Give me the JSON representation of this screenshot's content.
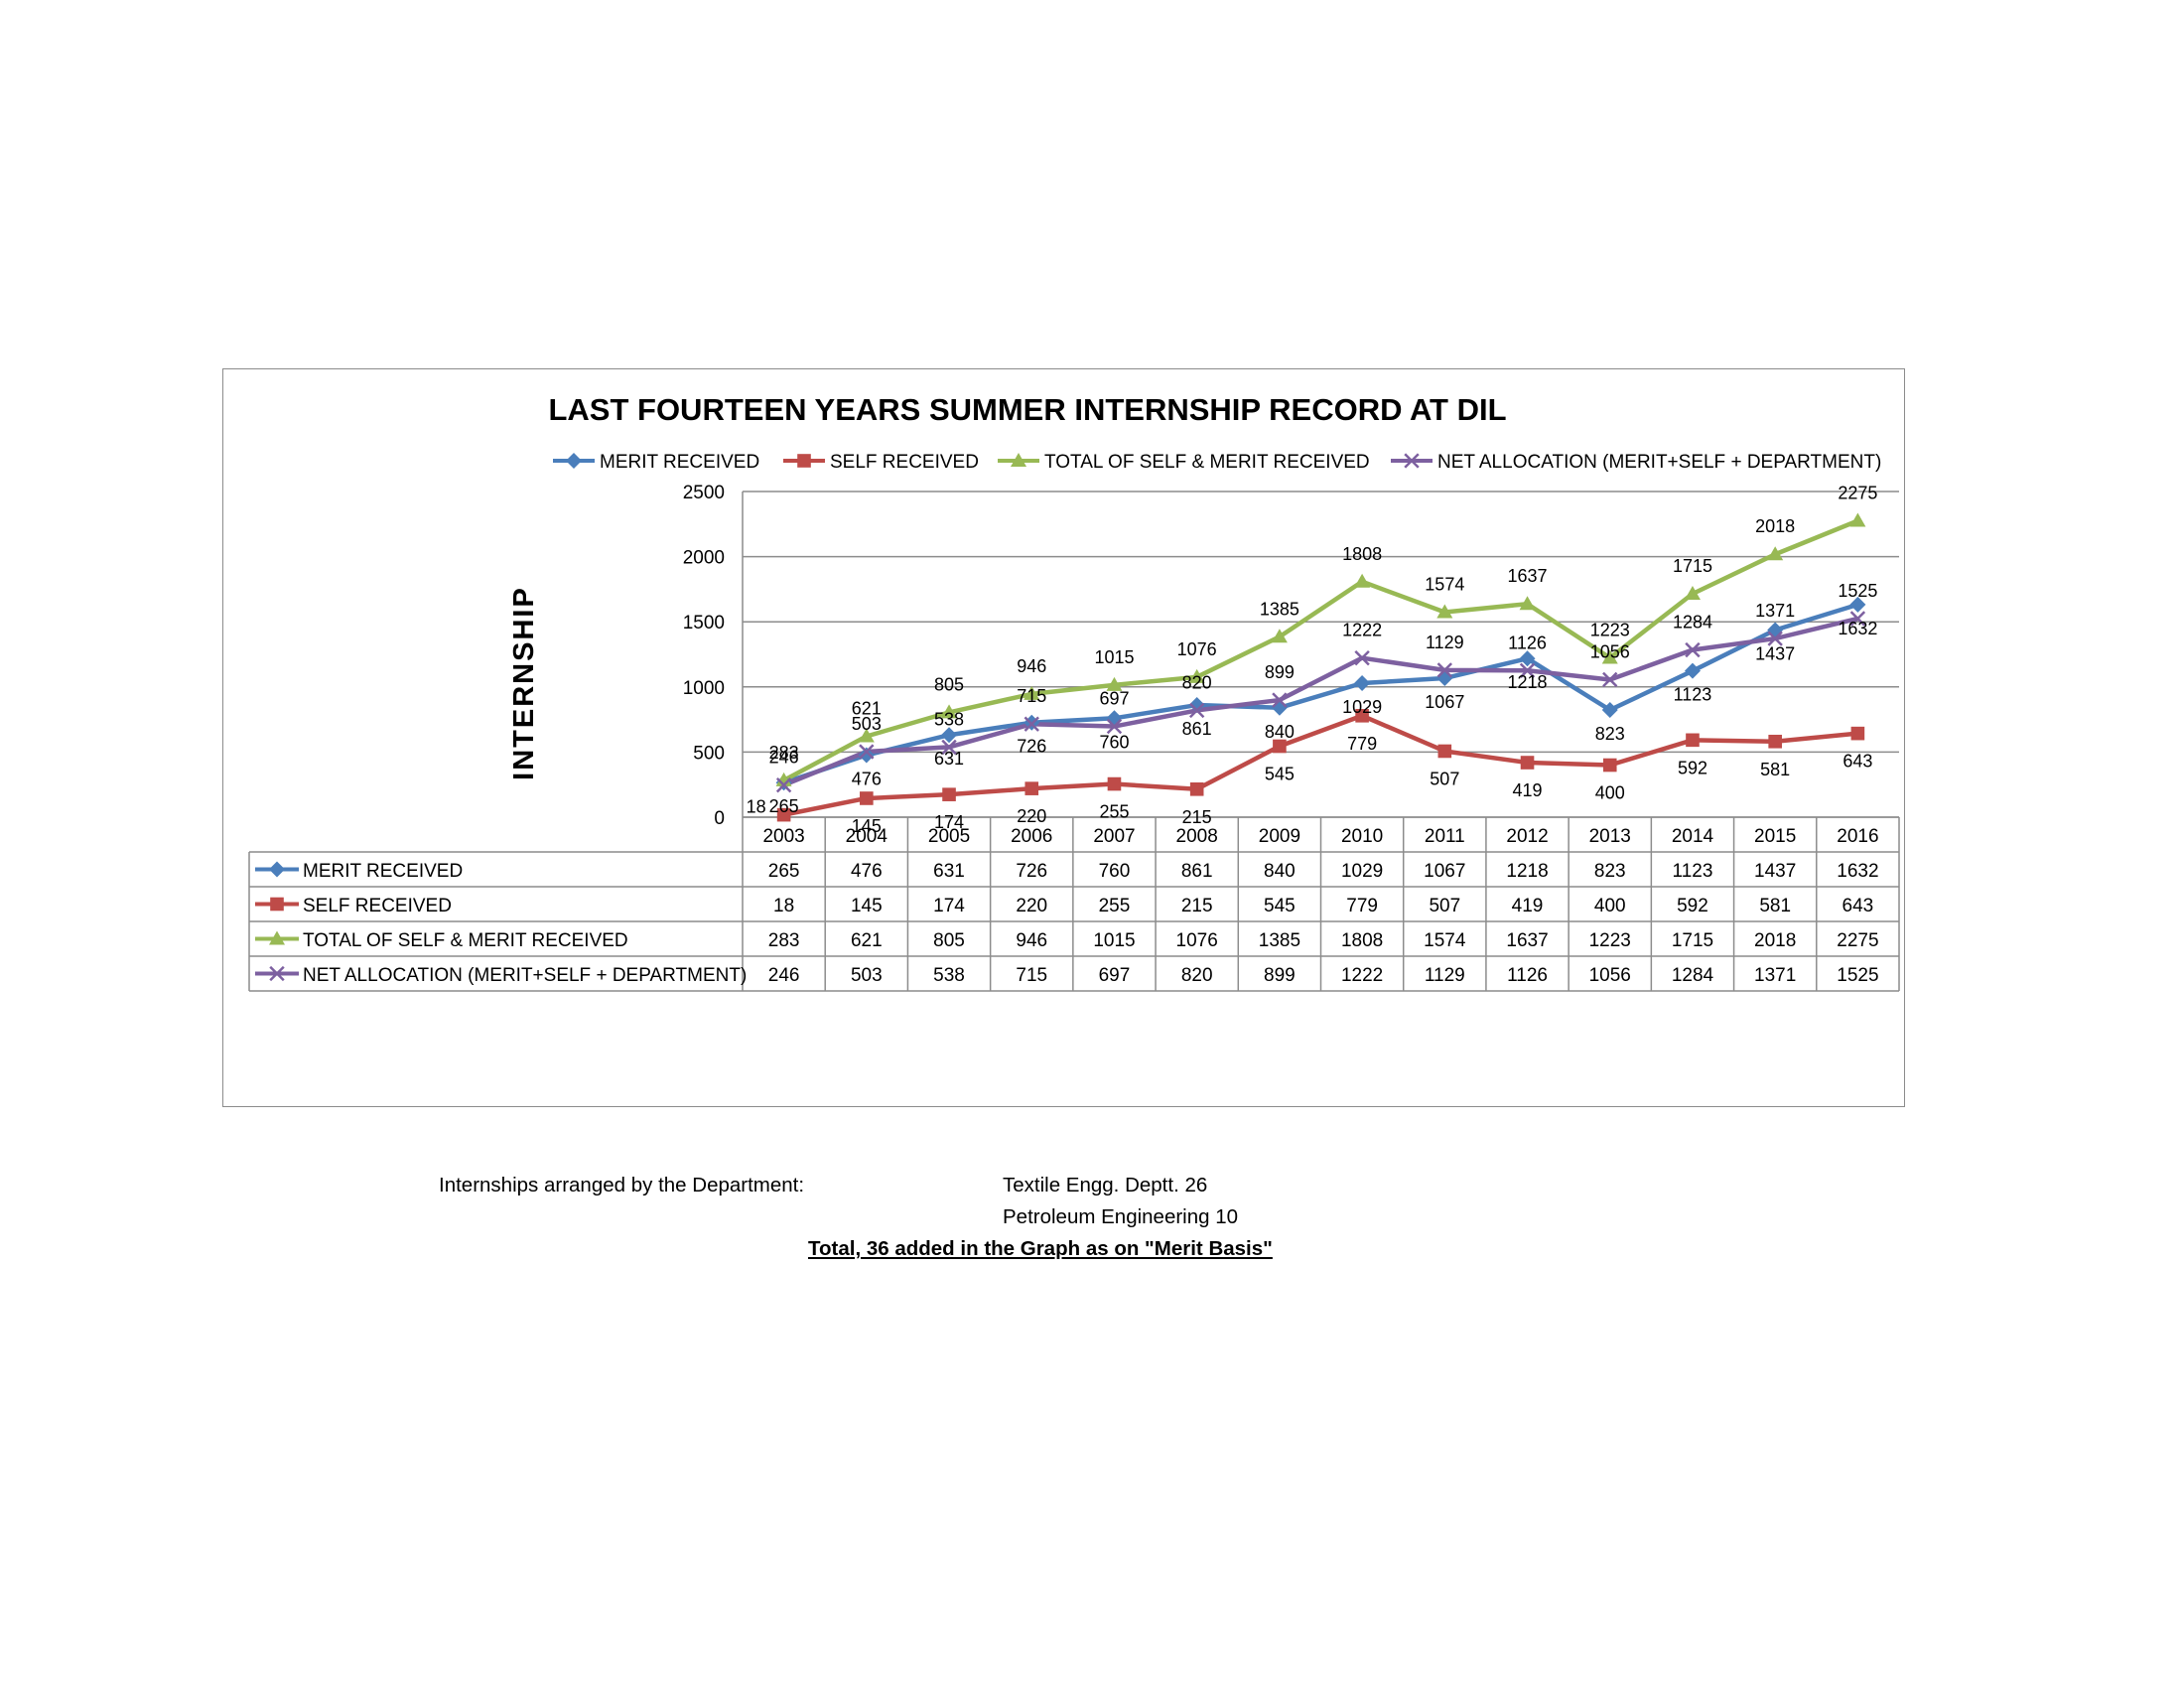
{
  "chart_data": {
    "type": "line",
    "title": "LAST FOURTEEN YEARS SUMMER INTERNSHIP RECORD AT DIL",
    "xlabel": "",
    "ylabel": "INTERNSHIP",
    "ylim": [
      0,
      2500
    ],
    "yticks": [
      0,
      500,
      1000,
      1500,
      2000,
      2500
    ],
    "grid": "horizontal",
    "legend": "top",
    "data_table": true,
    "categories": [
      "2003",
      "2004",
      "2005",
      "2006",
      "2007",
      "2008",
      "2009",
      "2010",
      "2011",
      "2012",
      "2013",
      "2014",
      "2015",
      "2016"
    ],
    "series": [
      {
        "name": "MERIT RECEIVED",
        "marker": "diamond",
        "color": "#4a7ebb",
        "values": [
          265,
          476,
          631,
          726,
          760,
          861,
          840,
          1029,
          1067,
          1218,
          823,
          1123,
          1437,
          1632
        ]
      },
      {
        "name": "SELF RECEIVED",
        "marker": "square",
        "color": "#be4b48",
        "values": [
          18,
          145,
          174,
          220,
          255,
          215,
          545,
          779,
          507,
          419,
          400,
          592,
          581,
          643
        ]
      },
      {
        "name": "TOTAL OF SELF & MERIT RECEIVED",
        "marker": "triangle",
        "color": "#98b954",
        "values": [
          283,
          621,
          805,
          946,
          1015,
          1076,
          1385,
          1808,
          1574,
          1637,
          1223,
          1715,
          2018,
          2275
        ]
      },
      {
        "name": "NET ALLOCATION (MERIT+SELF + DEPARTMENT)",
        "marker": "x",
        "color": "#7d60a0",
        "values": [
          246,
          503,
          538,
          715,
          697,
          820,
          899,
          1222,
          1129,
          1126,
          1056,
          1284,
          1371,
          1525
        ]
      }
    ]
  },
  "notes": {
    "label": "Internships arranged by the Department:",
    "dept1": "Textile Engg. Deptt. 26",
    "dept2": "Petroleum Engineering 10",
    "total": "Total, 36 added  in the Graph as on \"Merit Basis\""
  }
}
